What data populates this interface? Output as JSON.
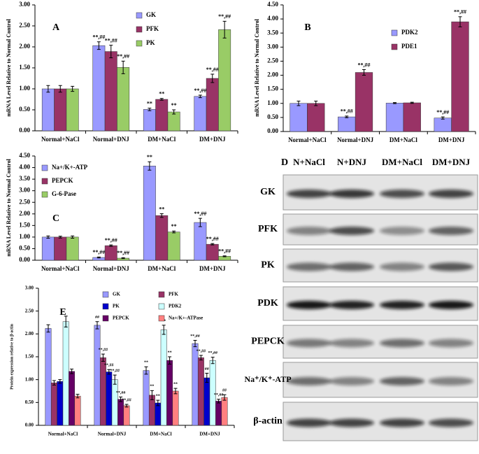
{
  "chart_data": [
    {
      "type": "bar",
      "title": "A",
      "y_label": "mRNA Level Relative to  Normal Control",
      "categories": [
        "Normal+NaCl",
        "Normal+DNJ",
        "DM+NaCl",
        "DM+DNJ"
      ],
      "ylim": [
        0,
        3
      ],
      "grid": false,
      "yticks": [
        {
          "value": 0,
          "label": "0.00"
        },
        {
          "value": 0.5,
          "label": "0.50"
        },
        {
          "value": 1,
          "label": "1.00"
        },
        {
          "value": 1.5,
          "label": "1.50"
        },
        {
          "value": 2,
          "label": "2.00"
        },
        {
          "value": 2.5,
          "label": "2.50"
        },
        {
          "value": 3,
          "label": "3.00"
        }
      ],
      "series": [
        {
          "name": "GK",
          "color": "#9999ff",
          "values": [
            1.0,
            2.03,
            0.51,
            0.82
          ],
          "errors": [
            0.08,
            0.09,
            0.03,
            0.03
          ],
          "labels": [
            null,
            "**,##",
            "**",
            "**,##"
          ]
        },
        {
          "name": "PFK",
          "color": "#993366",
          "values": [
            1.0,
            1.89,
            0.75,
            1.25
          ],
          "errors": [
            0.08,
            0.15,
            0.02,
            0.1
          ],
          "labels": [
            null,
            "**,##",
            "**",
            "**,##"
          ]
        },
        {
          "name": "PK",
          "color": "#99cc66",
          "values": [
            1.0,
            1.51,
            0.45,
            2.41
          ],
          "errors": [
            0.06,
            0.15,
            0.05,
            0.2
          ],
          "labels": [
            null,
            "**,##",
            "**",
            "**,##"
          ]
        }
      ]
    },
    {
      "type": "bar",
      "title": "B",
      "y_label": "mRNA Level Relative to  Normal Control",
      "categories": [
        "Normal+NaCl",
        "Normal+DNJ",
        "DM+NaCl",
        "DM+DNJ"
      ],
      "ylim": [
        0,
        4.5
      ],
      "grid": false,
      "yticks": [
        {
          "value": 0,
          "label": "0.00"
        },
        {
          "value": 0.5,
          "label": "0.50"
        },
        {
          "value": 1,
          "label": "1.00"
        },
        {
          "value": 1.5,
          "label": "1.50"
        },
        {
          "value": 2,
          "label": "2.00"
        },
        {
          "value": 2.5,
          "label": "2.50"
        },
        {
          "value": 3,
          "label": "3.00"
        },
        {
          "value": 3.5,
          "label": "3.50"
        },
        {
          "value": 4,
          "label": "4.00"
        },
        {
          "value": 4.5,
          "label": "4.50"
        }
      ],
      "series": [
        {
          "name": "PDK2",
          "color": "#9999ff",
          "values": [
            1.0,
            0.52,
            1.01,
            0.48
          ],
          "errors": [
            0.08,
            0.03,
            0.02,
            0.04
          ],
          "labels": [
            null,
            "**,##",
            null,
            "**,##"
          ]
        },
        {
          "name": "PDE1",
          "color": "#993366",
          "values": [
            1.0,
            2.1,
            1.02,
            3.9
          ],
          "errors": [
            0.08,
            0.1,
            0.02,
            0.18
          ],
          "labels": [
            null,
            "**,##",
            null,
            "**,##"
          ]
        }
      ]
    },
    {
      "type": "bar",
      "title": "C",
      "y_label": "mRNA Level Relative to  Normal Control",
      "categories": [
        "Normal+NaCl",
        "Normal+DNJ",
        "DM+NaCl",
        "DM+DNJ"
      ],
      "ylim": [
        0,
        4.5
      ],
      "grid": false,
      "yticks": [
        {
          "value": 0,
          "label": "0.00"
        },
        {
          "value": 0.5,
          "label": "0.50"
        },
        {
          "value": 1,
          "label": "1.00"
        },
        {
          "value": 1.5,
          "label": "1.50"
        },
        {
          "value": 2,
          "label": "2.00"
        },
        {
          "value": 2.5,
          "label": "2.50"
        },
        {
          "value": 3,
          "label": "3.00"
        },
        {
          "value": 3.5,
          "label": "3.50"
        },
        {
          "value": 4,
          "label": "4.00"
        },
        {
          "value": 4.5,
          "label": "4.50"
        }
      ],
      "series": [
        {
          "name": "Na+/K+-ATP",
          "color": "#9999ff",
          "values": [
            1.0,
            0.12,
            4.07,
            1.63
          ],
          "errors": [
            0.05,
            0.02,
            0.18,
            0.18
          ],
          "labels": [
            null,
            "**,##",
            "**",
            "**,##"
          ]
        },
        {
          "name": "PEPCK",
          "color": "#993366",
          "values": [
            1.0,
            0.63,
            1.93,
            0.69
          ],
          "errors": [
            0.04,
            0.03,
            0.08,
            0.03
          ],
          "labels": [
            null,
            "**,##",
            "**",
            "**,##"
          ]
        },
        {
          "name": "G-6-Pase",
          "color": "#99cc66",
          "values": [
            1.0,
            0.09,
            1.22,
            0.17
          ],
          "errors": [
            0.05,
            0.02,
            0.04,
            0.02
          ],
          "labels": [
            null,
            "**,##",
            "**",
            "**,##"
          ]
        }
      ]
    },
    {
      "type": "bar",
      "title": "E",
      "y_label": "Protein expression relative to β-actin",
      "categories": [
        "Normal+NaCl",
        "Normal+DNJ",
        "DM+NaCl",
        "DM+DNJ"
      ],
      "ylim": [
        0,
        3
      ],
      "grid": false,
      "yticks": [
        {
          "value": 0,
          "label": "0.00"
        },
        {
          "value": 0.5,
          "label": "0.50"
        },
        {
          "value": 1,
          "label": "1.00"
        },
        {
          "value": 1.5,
          "label": "1.50"
        },
        {
          "value": 2,
          "label": "2.00"
        },
        {
          "value": 2.5,
          "label": "2.50"
        },
        {
          "value": 3,
          "label": "3.00"
        }
      ],
      "series": [
        {
          "name": "GK",
          "color": "#9999ff",
          "values": [
            2.12,
            2.19,
            1.2,
            1.79
          ],
          "errors": [
            0.08,
            0.08,
            0.08,
            0.07
          ],
          "labels": [
            null,
            "##",
            "**",
            "**,##"
          ]
        },
        {
          "name": "PFK",
          "color": "#993366",
          "values": [
            0.93,
            1.48,
            0.66,
            1.48
          ],
          "errors": [
            0.05,
            0.08,
            0.1,
            0.05
          ],
          "labels": [
            null,
            "**,##",
            "**",
            "**,##"
          ]
        },
        {
          "name": "PK",
          "color": "#0000cc",
          "values": [
            0.96,
            1.17,
            0.49,
            1.04
          ],
          "errors": [
            0.04,
            0.05,
            0.06,
            0.1
          ],
          "labels": [
            null,
            "**,##",
            "**",
            "##"
          ]
        },
        {
          "name": "PDK2",
          "color": "#ccffff",
          "values": [
            2.27,
            1.0,
            2.09,
            1.42
          ],
          "errors": [
            0.12,
            0.1,
            0.1,
            0.07
          ],
          "labels": [
            null,
            "**,##",
            "**",
            "**,##"
          ]
        },
        {
          "name": "PEPCK",
          "color": "#660066",
          "values": [
            1.18,
            0.57,
            1.42,
            0.53
          ],
          "errors": [
            0.05,
            0.05,
            0.08,
            0.04
          ],
          "labels": [
            null,
            "**,##",
            "**",
            "**,##"
          ]
        },
        {
          "name": "Na+/K+-ATPase",
          "color": "#ff8080",
          "values": [
            0.64,
            0.43,
            0.75,
            0.61
          ],
          "errors": [
            0.04,
            0.03,
            0.06,
            0.06
          ],
          "labels": [
            null,
            "**,##",
            "**",
            "##"
          ]
        }
      ]
    }
  ],
  "blot": {
    "title": "D",
    "columns": [
      "N+NaCl",
      "N+DNJ",
      "DM+NaCl",
      "DM+DNJ"
    ],
    "rows": [
      "GK",
      "PFK",
      "PK",
      "PDK",
      "PEPCK",
      "Na⁺/K⁺-ATP",
      "β-actin"
    ]
  }
}
